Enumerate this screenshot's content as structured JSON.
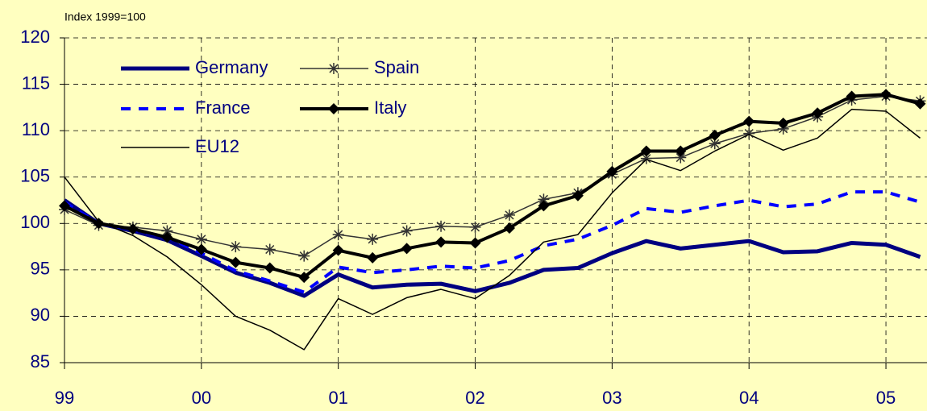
{
  "chart_data": {
    "type": "line",
    "subtitle": "Index 1999=100",
    "x": [
      1999,
      1999.25,
      1999.5,
      1999.75,
      2000,
      2000.25,
      2000.5,
      2000.75,
      2001,
      2001.25,
      2001.5,
      2001.75,
      2002,
      2002.25,
      2002.5,
      2002.75,
      2003,
      2003.25,
      2003.5,
      2003.75,
      2004,
      2004.25,
      2004.5,
      2004.75,
      2005,
      2005.25
    ],
    "series": [
      {
        "name": "Germany",
        "color": "#000080",
        "width": 5,
        "dash": false,
        "marker": "none",
        "values": [
          102.5,
          100,
          99.2,
          98.2,
          96.5,
          94.7,
          93.6,
          92.2,
          94.5,
          93.1,
          93.4,
          93.5,
          92.7,
          93.6,
          95.0,
          95.2,
          96.8,
          98.1,
          97.3,
          97.7,
          98.1,
          96.9,
          97.0,
          97.9,
          97.7,
          96.4
        ]
      },
      {
        "name": "Spain",
        "color": "#333333",
        "width": 1.5,
        "dash": false,
        "marker": "star",
        "values": [
          101.5,
          99.8,
          99.6,
          99.2,
          98.3,
          97.5,
          97.2,
          96.5,
          98.8,
          98.3,
          99.2,
          99.7,
          99.6,
          100.9,
          102.6,
          103.3,
          105.3,
          107.0,
          107.1,
          108.6,
          109.7,
          110.2,
          111.5,
          113.3,
          113.7,
          113.2
        ]
      },
      {
        "name": "France",
        "color": "#0000ff",
        "width": 4,
        "dash": true,
        "marker": "none",
        "values": [
          102.3,
          100,
          99.3,
          98.5,
          96.8,
          94.9,
          93.8,
          92.6,
          95.3,
          94.7,
          95.0,
          95.4,
          95.2,
          96.0,
          97.6,
          98.3,
          99.8,
          101.6,
          101.2,
          101.9,
          102.5,
          101.8,
          102.1,
          103.4,
          103.4,
          102.3
        ]
      },
      {
        "name": "Italy",
        "color": "#000000",
        "width": 4,
        "dash": false,
        "marker": "diamond",
        "values": [
          101.9,
          100,
          99.4,
          98.5,
          97.2,
          95.8,
          95.2,
          94.2,
          97.1,
          96.3,
          97.3,
          98.0,
          97.9,
          99.5,
          101.9,
          103.0,
          105.6,
          107.8,
          107.8,
          109.5,
          111.0,
          110.8,
          111.9,
          113.7,
          113.9,
          112.9
        ]
      },
      {
        "name": "EU12",
        "color": "#000000",
        "width": 1.5,
        "dash": false,
        "marker": "none",
        "values": [
          105.0,
          100.2,
          98.7,
          96.4,
          93.4,
          90.0,
          88.5,
          86.4,
          91.9,
          90.2,
          92.0,
          92.9,
          91.9,
          94.4,
          98.0,
          98.8,
          103.3,
          106.9,
          105.7,
          107.8,
          109.6,
          107.9,
          109.2,
          112.3,
          112.1,
          109.2
        ]
      }
    ],
    "xlim": [
      1999,
      2005.3
    ],
    "xticks": [
      {
        "value": 1999,
        "label": "99"
      },
      {
        "value": 2000,
        "label": "00"
      },
      {
        "value": 2001,
        "label": "01"
      },
      {
        "value": 2002,
        "label": "02"
      },
      {
        "value": 2003,
        "label": "03"
      },
      {
        "value": 2004,
        "label": "04"
      },
      {
        "value": 2005,
        "label": "05"
      }
    ],
    "ylim": [
      85,
      120
    ],
    "yticks": [
      85,
      90,
      95,
      100,
      105,
      110,
      115,
      120
    ],
    "grid": true
  }
}
